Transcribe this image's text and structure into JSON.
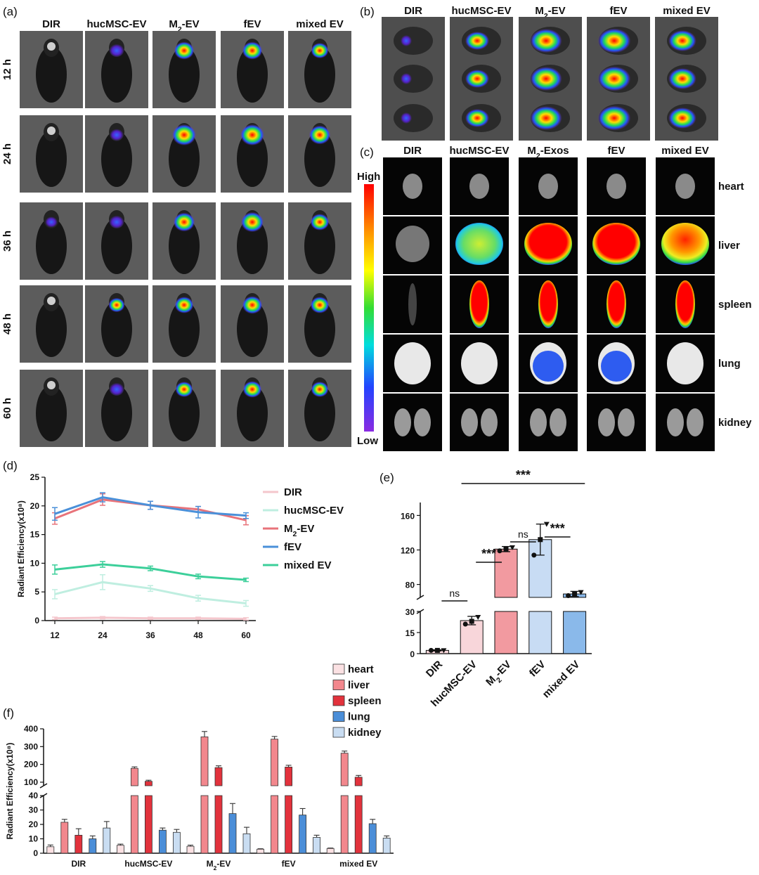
{
  "panel_labels": {
    "a": "(a)",
    "b": "(b)",
    "c": "(c)",
    "d": "(d)",
    "e": "(e)",
    "f": "(f)"
  },
  "groups": [
    "DIR",
    "hucMSC-EV",
    "M2-EV",
    "fEV",
    "mixed EV"
  ],
  "panel_a": {
    "columns": [
      "DIR",
      "hucMSC-EV",
      "M2-EV",
      "fEV",
      "mixed EV"
    ],
    "rows": [
      "12 h",
      "24 h",
      "36 h",
      "48 h",
      "60 h"
    ]
  },
  "panel_b": {
    "columns": [
      "DIR",
      "hucMSC-EV",
      "M2-EV",
      "fEV",
      "mixed EV"
    ]
  },
  "panel_c": {
    "columns": [
      "DIR",
      "hucMSC-EV",
      "M2-Exos",
      "fEV",
      "mixed EV"
    ],
    "organs": [
      "heart",
      "liver",
      "spleen",
      "lung",
      "kidney"
    ],
    "colorbar": {
      "high": "High",
      "low": "Low"
    }
  },
  "colors": {
    "DIR": "#f4c6cc",
    "hucMSC-EV": "#bfeee0",
    "M2-EV": "#e8737a",
    "fEV": "#4a90d9",
    "mixed EV": "#3ccf9a",
    "heart": "#fbe1e3",
    "liver": "#f2878d",
    "spleen": "#e2323c",
    "lung": "#4b8ed8",
    "kidney": "#c9ddf2",
    "e_bars": [
      "#f8d6da",
      "#f8d6da",
      "#f29aa0",
      "#c8dcf4",
      "#8ab9ea"
    ]
  },
  "chart_data": [
    {
      "panel": "(d)",
      "type": "line",
      "ylabel": "Radiant Efficiency(x10⁸)",
      "xlabel": "",
      "x": [
        12,
        24,
        36,
        48,
        60
      ],
      "xticks": [
        "12",
        "24",
        "36",
        "48",
        "60"
      ],
      "ylim": [
        0,
        25
      ],
      "yticks": [
        "0",
        "5",
        "10",
        "15",
        "20",
        "25"
      ],
      "legend_position": "right",
      "series": [
        {
          "name": "DIR",
          "values": [
            0.4,
            0.5,
            0.4,
            0.4,
            0.3
          ],
          "err": [
            0.2,
            0.2,
            0.2,
            0.2,
            0.2
          ]
        },
        {
          "name": "hucMSC-EV",
          "values": [
            4.6,
            6.7,
            5.6,
            3.9,
            3.0
          ],
          "err": [
            0.8,
            1.3,
            0.5,
            0.5,
            0.5
          ]
        },
        {
          "name": "M2-EV",
          "values": [
            17.8,
            21.1,
            20.1,
            19.4,
            17.5
          ],
          "err": [
            1.0,
            1.0,
            0.7,
            0.5,
            0.8
          ]
        },
        {
          "name": "fEV",
          "values": [
            18.6,
            21.5,
            20.1,
            18.9,
            18.3
          ],
          "err": [
            1.1,
            0.8,
            0.7,
            1.0,
            0.5
          ]
        },
        {
          "name": "mixed EV",
          "values": [
            8.9,
            9.8,
            9.1,
            7.7,
            7.1
          ],
          "err": [
            0.8,
            0.5,
            0.4,
            0.4,
            0.3
          ]
        }
      ]
    },
    {
      "panel": "(e)",
      "type": "bar",
      "categories": [
        "DIR",
        "hucMSC-EV",
        "M2-EV",
        "fEV",
        "mixed EV"
      ],
      "values": [
        2.3,
        23.5,
        121,
        132,
        69
      ],
      "err": [
        0.4,
        3.0,
        3,
        18,
        3
      ],
      "points": [
        [
          2.3,
          2.3,
          2.3
        ],
        [
          21,
          23,
          26
        ],
        [
          119,
          121,
          123
        ],
        [
          114,
          132,
          150
        ],
        [
          67,
          69,
          71
        ]
      ],
      "ylabel": "",
      "axis_break": {
        "lower": [
          0,
          30
        ],
        "upper": [
          65,
          175
        ]
      },
      "yticks_lower": [
        "0",
        "15",
        "30"
      ],
      "yticks_upper": [
        "80",
        "120",
        "160"
      ],
      "significance": [
        {
          "from": "DIR",
          "to": "hucMSC-EV",
          "label": "ns"
        },
        {
          "from": "hucMSC-EV",
          "to": "M2-EV",
          "label": "***"
        },
        {
          "from": "M2-EV",
          "to": "fEV",
          "label": "ns"
        },
        {
          "from": "fEV",
          "to": "mixed EV",
          "label": "***"
        },
        {
          "from": "hucMSC-EV",
          "to": "mixed EV",
          "label": "***"
        }
      ]
    },
    {
      "panel": "(f)",
      "type": "bar",
      "categories": [
        "DIR",
        "hucMSC-EV",
        "M2-EV",
        "fEV",
        "mixed EV"
      ],
      "ylabel": "Radiant Efficiency(x10⁸)",
      "axis_break": {
        "lower": [
          0,
          40
        ],
        "upper": [
          80,
          400
        ]
      },
      "yticks_lower": [
        "0",
        "10",
        "20",
        "30",
        "40"
      ],
      "yticks_upper": [
        "100",
        "200",
        "300",
        "400"
      ],
      "legend_position": "top-right",
      "series": [
        {
          "name": "heart",
          "values": [
            4.5,
            5.5,
            4.8,
            2.8,
            3.3
          ],
          "err": [
            1.2,
            0.8,
            0.8,
            0.3,
            0.3
          ]
        },
        {
          "name": "liver",
          "values": [
            21.5,
            178,
            355,
            342,
            263
          ],
          "err": [
            2.0,
            8,
            30,
            15,
            12
          ]
        },
        {
          "name": "spleen",
          "values": [
            12.5,
            105,
            182,
            185,
            128
          ],
          "err": [
            4.5,
            6,
            10,
            10,
            10
          ]
        },
        {
          "name": "lung",
          "values": [
            10.0,
            16.0,
            27.5,
            26.5,
            20.5
          ],
          "err": [
            2.0,
            1.5,
            7.0,
            4.5,
            3.0
          ]
        },
        {
          "name": "kidney",
          "values": [
            17.5,
            14.5,
            13.5,
            11.0,
            10.5
          ],
          "err": [
            4.5,
            2.0,
            4.5,
            1.5,
            1.5
          ]
        }
      ]
    }
  ]
}
